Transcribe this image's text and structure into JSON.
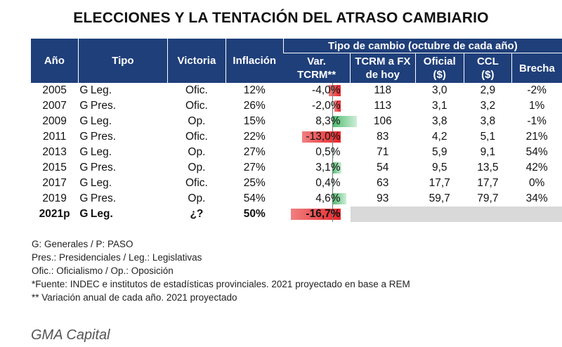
{
  "title": "ELECCIONES Y LA TENTACIÓN DEL ATRASO CAMBIARIO",
  "header": {
    "anio": "Año",
    "tipo": "Tipo",
    "victoria": "Victoria",
    "inflacion": "Inflación",
    "group": "Tipo de cambio (octubre de cada año)",
    "var_l1": "Var.",
    "var_l2": "TCRM**",
    "tcrm_l1": "TCRM a FX",
    "tcrm_l2": "de hoy",
    "oficial_l1": "Oficial",
    "oficial_l2": "($)",
    "ccl_l1": "CCL",
    "ccl_l2": "($)",
    "brecha": "Brecha"
  },
  "rows": [
    {
      "anio": "2005",
      "g": "G",
      "tipo": "Leg.",
      "victoria": "Ofic.",
      "inflacion": "12%",
      "var": "-4,0%",
      "var_num": -4.0,
      "tcrm": "118",
      "oficial": "3,0",
      "ccl": "2,9",
      "brecha": "-2%"
    },
    {
      "anio": "2007",
      "g": "G",
      "tipo": "Pres.",
      "victoria": "Ofic.",
      "inflacion": "26%",
      "var": "-2,0%",
      "var_num": -2.0,
      "tcrm": "113",
      "oficial": "3,1",
      "ccl": "3,2",
      "brecha": "1%"
    },
    {
      "anio": "2009",
      "g": "G",
      "tipo": "Leg.",
      "victoria": "Op.",
      "inflacion": "15%",
      "var": "8,3%",
      "var_num": 8.3,
      "tcrm": "106",
      "oficial": "3,8",
      "ccl": "3,8",
      "brecha": "-1%"
    },
    {
      "anio": "2011",
      "g": "G",
      "tipo": "Pres.",
      "victoria": "Ofic.",
      "inflacion": "22%",
      "var": "-13,0%",
      "var_num": -13.0,
      "tcrm": "83",
      "oficial": "4,2",
      "ccl": "5,1",
      "brecha": "21%"
    },
    {
      "anio": "2013",
      "g": "G",
      "tipo": "Leg.",
      "victoria": "Op.",
      "inflacion": "27%",
      "var": "0,5%",
      "var_num": 0.5,
      "tcrm": "71",
      "oficial": "5,9",
      "ccl": "9,1",
      "brecha": "54%"
    },
    {
      "anio": "2015",
      "g": "G",
      "tipo": "Pres.",
      "victoria": "Op.",
      "inflacion": "27%",
      "var": "3,1%",
      "var_num": 3.1,
      "tcrm": "54",
      "oficial": "9,5",
      "ccl": "13,5",
      "brecha": "42%"
    },
    {
      "anio": "2017",
      "g": "G",
      "tipo": "Leg.",
      "victoria": "Ofic.",
      "inflacion": "25%",
      "var": "0,4%",
      "var_num": 0.4,
      "tcrm": "63",
      "oficial": "17,7",
      "ccl": "17,7",
      "brecha": "0%"
    },
    {
      "anio": "2019",
      "g": "G",
      "tipo": "Pres.",
      "victoria": "Op.",
      "inflacion": "54%",
      "var": "4,6%",
      "var_num": 4.6,
      "tcrm": "93",
      "oficial": "59,7",
      "ccl": "79,7",
      "brecha": "34%"
    },
    {
      "anio": "2021p",
      "g": "G",
      "tipo": "Leg.",
      "victoria": "¿?",
      "inflacion": "50%",
      "var": "-16,7%",
      "var_num": -16.7,
      "tcrm": "",
      "oficial": "",
      "ccl": "",
      "brecha": "",
      "bold": true,
      "gray": true
    }
  ],
  "notes": [
    "G: Generales / P: PASO",
    "Pres.: Presidenciales / Leg.: Legislativas",
    "Ofic.: Oficialismo / Op.: Oposición",
    "*Fuente: INDEC e institutos de estadísticas provinciales. 2021 proyectado en base a REM",
    "** Variación anual de cada año. 2021 proyectado"
  ],
  "brand": "GMA Capital",
  "colors": {
    "header_bg": "#1f3f7a",
    "neg_bar": "#e8262a",
    "pos_bar": "#4cbb6e",
    "gray_fill": "#d9d9d9"
  }
}
